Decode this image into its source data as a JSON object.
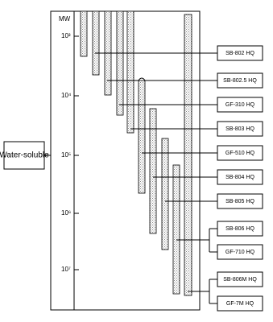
{
  "axis": {
    "label": "MW",
    "ticks": [
      "10³",
      "10⁴",
      "10⁵",
      "10⁶",
      "10⁷"
    ]
  },
  "category": "Water-soluble",
  "columns": [
    "SB-802 HQ",
    "SB-802.5 HQ",
    "GF-310 HQ",
    "SB-803 HQ",
    "GF-510 HQ",
    "SB-804 HQ",
    "SB-805 HQ",
    "SB-806 HQ",
    "GF-710 HQ",
    "SB-806M HQ",
    "GF-7M HQ"
  ]
}
